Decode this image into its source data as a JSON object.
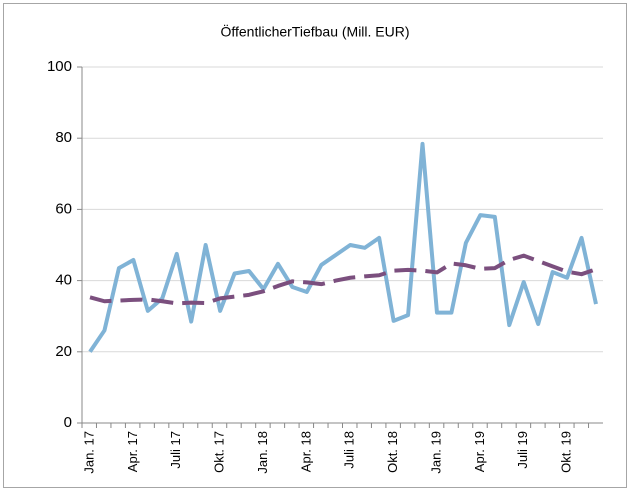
{
  "chart_data": {
    "type": "line",
    "title": "ÖffentlicherTiefbau (Mill. EUR)",
    "categories": [
      "Jan. 17",
      null,
      null,
      "Apr. 17",
      null,
      null,
      "Juli 17",
      null,
      null,
      "Okt. 17",
      null,
      null,
      "Jan. 18",
      null,
      null,
      "Apr. 18",
      null,
      null,
      "Juli 18",
      null,
      null,
      "Okt. 18",
      null,
      null,
      "Jan. 19",
      null,
      null,
      "Apr. 19",
      null,
      null,
      "Juli 19",
      null,
      null,
      "Okt. 19",
      null,
      null
    ],
    "series": [
      {
        "color": "#80b3d6",
        "style": "solid",
        "values": [
          20,
          26,
          43.5,
          45.8,
          31.5,
          35,
          47.5,
          28.5,
          50,
          31.5,
          42,
          42.7,
          37.6,
          44.7,
          38.2,
          36.8,
          44.4,
          47.2,
          50,
          49.2,
          52,
          28.7,
          30.3,
          78.4,
          31,
          31,
          50.6,
          58.4,
          57.9,
          27.5,
          39.6,
          27.8,
          42.4,
          40.8,
          52,
          33.4
        ]
      },
      {
        "color": "#7b4f7e",
        "style": "dashed",
        "values": [
          35.3,
          34.2,
          34.4,
          34.6,
          34.7,
          34.2,
          33.6,
          33.8,
          33.7,
          35,
          35.5,
          36,
          37,
          38.5,
          39.8,
          39.5,
          39,
          40,
          40.8,
          41.2,
          41.5,
          42.8,
          43,
          42.8,
          42.3,
          44.8,
          44.3,
          43.3,
          43.5,
          45.8,
          47,
          45.5,
          44,
          42.5,
          41.8,
          43.2
        ]
      }
    ],
    "ylim": [
      0,
      100
    ],
    "yticks": [
      0,
      20,
      40,
      60,
      80,
      100
    ],
    "grid": true
  }
}
